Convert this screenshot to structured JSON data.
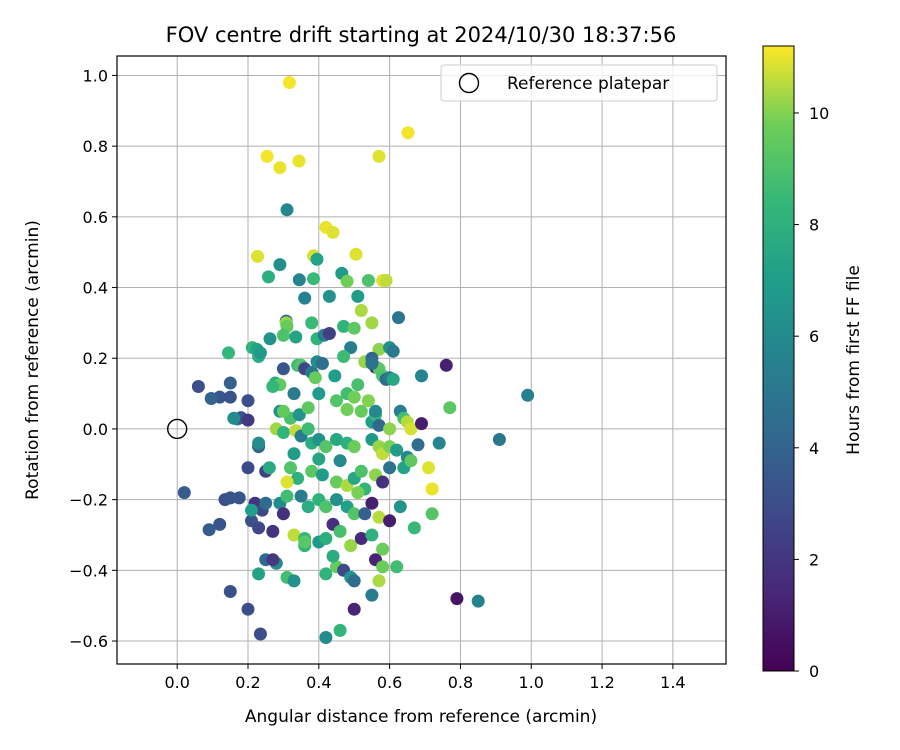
{
  "chart_data": {
    "type": "scatter",
    "title": "FOV centre drift starting at 2024/10/30 18:37:56",
    "xlabel": "Angular distance from reference (arcmin)",
    "ylabel": "Rotation from reference (arcmin)",
    "xlim": [
      -0.17,
      1.55
    ],
    "ylim": [
      -0.665,
      1.055
    ],
    "xticks": [
      0.0,
      0.2,
      0.4,
      0.6,
      0.8,
      1.0,
      1.2,
      1.4
    ],
    "xtick_labels": [
      "0.0",
      "0.2",
      "0.4",
      "0.6",
      "0.8",
      "1.0",
      "1.2",
      "1.4"
    ],
    "yticks": [
      -0.6,
      -0.4,
      -0.2,
      0.0,
      0.2,
      0.4,
      0.6,
      0.8,
      1.0
    ],
    "ytick_labels": [
      "−0.6",
      "−0.4",
      "−0.2",
      "0.0",
      "0.2",
      "0.4",
      "0.6",
      "0.8",
      "1.0"
    ],
    "grid": true,
    "legend": {
      "placement": "top-right",
      "label": "Reference platepar"
    },
    "reference": {
      "x": 0.0,
      "y": 0.0
    },
    "colorbar": {
      "label": "Hours from first FF file",
      "colormap": "viridis",
      "range": [
        0,
        11.2
      ],
      "ticks": [
        0,
        2,
        4,
        6,
        8,
        10
      ],
      "tick_labels": [
        "0",
        "2",
        "4",
        "6",
        "8",
        "10"
      ]
    },
    "series": [
      {
        "columns": [
          "x",
          "y",
          "hours"
        ],
        "points": [
          [
            0.317,
            0.98,
            11.1
          ],
          [
            0.652,
            0.838,
            11.1
          ],
          [
            0.254,
            0.771,
            11.1
          ],
          [
            0.344,
            0.758,
            11.0
          ],
          [
            0.57,
            0.771,
            10.9
          ],
          [
            0.29,
            0.739,
            11.0
          ],
          [
            0.31,
            0.62,
            5.9
          ],
          [
            0.42,
            0.57,
            11.0
          ],
          [
            0.44,
            0.556,
            10.9
          ],
          [
            0.227,
            0.488,
            10.9
          ],
          [
            0.505,
            0.494,
            10.9
          ],
          [
            0.385,
            0.49,
            10.8
          ],
          [
            0.395,
            0.48,
            7.2
          ],
          [
            0.29,
            0.465,
            6.2
          ],
          [
            0.258,
            0.43,
            7.9
          ],
          [
            0.345,
            0.422,
            5.7
          ],
          [
            0.385,
            0.425,
            8.5
          ],
          [
            0.465,
            0.44,
            6.8
          ],
          [
            0.48,
            0.418,
            9.8
          ],
          [
            0.54,
            0.42,
            9.0
          ],
          [
            0.58,
            0.42,
            10.9
          ],
          [
            0.59,
            0.42,
            10.6
          ],
          [
            0.36,
            0.37,
            5.6
          ],
          [
            0.43,
            0.375,
            6.4
          ],
          [
            0.51,
            0.375,
            6.9
          ],
          [
            0.52,
            0.335,
            10.4
          ],
          [
            0.625,
            0.315,
            4.9
          ],
          [
            0.308,
            0.305,
            4.0
          ],
          [
            0.308,
            0.3,
            10.2
          ],
          [
            0.31,
            0.29,
            9.6
          ],
          [
            0.47,
            0.29,
            8.2
          ],
          [
            0.5,
            0.285,
            9.4
          ],
          [
            0.55,
            0.3,
            10.3
          ],
          [
            0.262,
            0.255,
            6.4
          ],
          [
            0.3,
            0.265,
            9.0
          ],
          [
            0.335,
            0.26,
            7.3
          ],
          [
            0.395,
            0.255,
            8.1
          ],
          [
            0.415,
            0.265,
            5.2
          ],
          [
            0.49,
            0.23,
            5.4
          ],
          [
            0.57,
            0.225,
            10.1
          ],
          [
            0.6,
            0.23,
            6.3
          ],
          [
            0.145,
            0.215,
            8.4
          ],
          [
            0.212,
            0.23,
            8.3
          ],
          [
            0.23,
            0.205,
            7.8
          ],
          [
            0.225,
            0.225,
            7.3
          ],
          [
            0.235,
            0.215,
            6.8
          ],
          [
            0.277,
            0.13,
            7.7
          ],
          [
            0.29,
            0.125,
            9.5
          ],
          [
            0.3,
            0.17,
            3.4
          ],
          [
            0.34,
            0.18,
            8.6
          ],
          [
            0.35,
            0.18,
            9.1
          ],
          [
            0.36,
            0.17,
            2.6
          ],
          [
            0.38,
            0.16,
            5.0
          ],
          [
            0.395,
            0.19,
            6.1
          ],
          [
            0.41,
            0.185,
            4.6
          ],
          [
            0.445,
            0.15,
            7.0
          ],
          [
            0.47,
            0.205,
            8.6
          ],
          [
            0.53,
            0.19,
            10.2
          ],
          [
            0.55,
            0.2,
            4.1
          ],
          [
            0.56,
            0.175,
            1.2
          ],
          [
            0.57,
            0.17,
            9.3
          ],
          [
            0.58,
            0.15,
            9.0
          ],
          [
            0.59,
            0.14,
            4.3
          ],
          [
            0.6,
            0.145,
            5.3
          ],
          [
            0.61,
            0.14,
            7.5
          ],
          [
            0.69,
            0.15,
            5.7
          ],
          [
            0.76,
            0.18,
            1.1
          ],
          [
            0.06,
            0.12,
            3.1
          ],
          [
            0.15,
            0.13,
            3.8
          ],
          [
            0.12,
            0.09,
            3.4
          ],
          [
            0.15,
            0.09,
            3.2
          ],
          [
            0.2,
            0.08,
            3.1
          ],
          [
            0.096,
            0.086,
            4.0
          ],
          [
            0.17,
            0.028,
            5.7
          ],
          [
            0.18,
            0.032,
            3.3
          ],
          [
            0.2,
            0.025,
            2.1
          ],
          [
            0.16,
            0.03,
            6.1
          ],
          [
            0.29,
            0.05,
            6.3
          ],
          [
            0.32,
            0.03,
            8.9
          ],
          [
            0.345,
            0.04,
            6.5
          ],
          [
            0.37,
            0.06,
            9.4
          ],
          [
            0.4,
            0.1,
            6.8
          ],
          [
            0.45,
            0.08,
            9.1
          ],
          [
            0.48,
            0.1,
            8.7
          ],
          [
            0.5,
            0.09,
            9.8
          ],
          [
            0.52,
            0.05,
            9.6
          ],
          [
            0.54,
            0.08,
            10.0
          ],
          [
            0.55,
            0.02,
            7.1
          ],
          [
            0.56,
            0.04,
            8.4
          ],
          [
            0.57,
            0.01,
            4.2
          ],
          [
            0.6,
            0.0,
            10.1
          ],
          [
            0.63,
            0.05,
            5.4
          ],
          [
            0.64,
            0.03,
            8.8
          ],
          [
            0.65,
            0.02,
            10.5
          ],
          [
            0.66,
            0.0,
            10.8
          ],
          [
            0.69,
            0.015,
            1.0
          ],
          [
            0.77,
            0.06,
            9.3
          ],
          [
            0.99,
            0.095,
            5.5
          ],
          [
            0.23,
            -0.05,
            4.0
          ],
          [
            0.23,
            -0.04,
            6.2
          ],
          [
            0.28,
            0.0,
            10.3
          ],
          [
            0.3,
            -0.01,
            8.3
          ],
          [
            0.335,
            -0.005,
            10.6
          ],
          [
            0.35,
            -0.02,
            5.2
          ],
          [
            0.38,
            -0.04,
            7.8
          ],
          [
            0.4,
            -0.03,
            6.4
          ],
          [
            0.42,
            -0.05,
            9.2
          ],
          [
            0.45,
            -0.03,
            7.6
          ],
          [
            0.48,
            -0.04,
            8.0
          ],
          [
            0.5,
            -0.05,
            9.7
          ],
          [
            0.55,
            -0.03,
            6.7
          ],
          [
            0.57,
            -0.05,
            10.2
          ],
          [
            0.58,
            -0.07,
            10.6
          ],
          [
            0.6,
            -0.05,
            9.9
          ],
          [
            0.62,
            -0.06,
            6.9
          ],
          [
            0.65,
            -0.08,
            5.8
          ],
          [
            0.68,
            -0.045,
            4.5
          ],
          [
            0.74,
            -0.04,
            5.7
          ],
          [
            0.91,
            -0.03,
            5.0
          ],
          [
            0.2,
            -0.11,
            2.8
          ],
          [
            0.25,
            -0.12,
            2.4
          ],
          [
            0.26,
            -0.11,
            7.6
          ],
          [
            0.32,
            -0.11,
            9.1
          ],
          [
            0.34,
            -0.14,
            8.0
          ],
          [
            0.38,
            -0.12,
            9.3
          ],
          [
            0.41,
            -0.13,
            6.9
          ],
          [
            0.45,
            -0.15,
            9.6
          ],
          [
            0.48,
            -0.16,
            10.4
          ],
          [
            0.5,
            -0.14,
            7.5
          ],
          [
            0.53,
            -0.17,
            8.3
          ],
          [
            0.56,
            -0.13,
            10.1
          ],
          [
            0.58,
            -0.15,
            1.8
          ],
          [
            0.6,
            -0.11,
            4.8
          ],
          [
            0.64,
            -0.11,
            7.2
          ],
          [
            0.66,
            -0.09,
            9.4
          ],
          [
            0.71,
            -0.11,
            10.9
          ],
          [
            0.02,
            -0.18,
            3.6
          ],
          [
            0.135,
            -0.2,
            3.1
          ],
          [
            0.15,
            -0.195,
            3.2
          ],
          [
            0.175,
            -0.195,
            3.4
          ],
          [
            0.22,
            -0.21,
            1.9
          ],
          [
            0.24,
            -0.23,
            2.7
          ],
          [
            0.25,
            -0.21,
            4.4
          ],
          [
            0.29,
            -0.21,
            6.1
          ],
          [
            0.31,
            -0.19,
            8.7
          ],
          [
            0.35,
            -0.19,
            5.3
          ],
          [
            0.37,
            -0.22,
            7.8
          ],
          [
            0.4,
            -0.2,
            8.1
          ],
          [
            0.42,
            -0.22,
            9.0
          ],
          [
            0.45,
            -0.2,
            6.3
          ],
          [
            0.48,
            -0.22,
            7.1
          ],
          [
            0.5,
            -0.24,
            9.2
          ],
          [
            0.53,
            -0.24,
            3.8
          ],
          [
            0.55,
            -0.21,
            1.1
          ],
          [
            0.57,
            -0.25,
            10.5
          ],
          [
            0.6,
            -0.26,
            1.0
          ],
          [
            0.63,
            -0.22,
            6.5
          ],
          [
            0.67,
            -0.28,
            8.5
          ],
          [
            0.72,
            -0.24,
            9.2
          ],
          [
            0.72,
            -0.17,
            11.0
          ],
          [
            0.09,
            -0.285,
            3.6
          ],
          [
            0.12,
            -0.27,
            3.3
          ],
          [
            0.21,
            -0.26,
            3.2
          ],
          [
            0.23,
            -0.28,
            2.7
          ],
          [
            0.27,
            -0.29,
            1.9
          ],
          [
            0.3,
            -0.24,
            1.7
          ],
          [
            0.31,
            -0.15,
            10.9
          ],
          [
            0.33,
            -0.3,
            10.6
          ],
          [
            0.36,
            -0.31,
            8.4
          ],
          [
            0.4,
            -0.32,
            6.7
          ],
          [
            0.42,
            -0.31,
            7.9
          ],
          [
            0.44,
            -0.27,
            1.7
          ],
          [
            0.46,
            -0.29,
            8.9
          ],
          [
            0.49,
            -0.33,
            10.2
          ],
          [
            0.52,
            -0.31,
            1.5
          ],
          [
            0.55,
            -0.3,
            8.0
          ],
          [
            0.56,
            -0.37,
            1.3
          ],
          [
            0.58,
            -0.34,
            9.7
          ],
          [
            0.36,
            -0.33,
            8.1
          ],
          [
            0.25,
            -0.37,
            4.3
          ],
          [
            0.28,
            -0.38,
            6.0
          ],
          [
            0.31,
            -0.42,
            8.8
          ],
          [
            0.33,
            -0.43,
            6.4
          ],
          [
            0.36,
            -0.32,
            9.3
          ],
          [
            0.42,
            -0.41,
            8.2
          ],
          [
            0.45,
            -0.39,
            9.6
          ],
          [
            0.47,
            -0.4,
            2.8
          ],
          [
            0.49,
            -0.42,
            6.6
          ],
          [
            0.5,
            -0.43,
            4.5
          ],
          [
            0.55,
            -0.47,
            5.3
          ],
          [
            0.57,
            -0.43,
            10.4
          ],
          [
            0.58,
            -0.39,
            9.7
          ],
          [
            0.62,
            -0.39,
            8.7
          ],
          [
            0.15,
            -0.46,
            3.2
          ],
          [
            0.2,
            -0.51,
            3.0
          ],
          [
            0.23,
            -0.41,
            7.3
          ],
          [
            0.46,
            -0.57,
            8.3
          ],
          [
            0.42,
            -0.59,
            6.1
          ],
          [
            0.5,
            -0.51,
            1.3
          ],
          [
            0.235,
            -0.58,
            3.0
          ],
          [
            0.79,
            -0.48,
            0.7
          ],
          [
            0.85,
            -0.487,
            5.6
          ],
          [
            0.27,
            0.12,
            8.4
          ],
          [
            0.43,
            0.27,
            2.4
          ],
          [
            0.55,
            0.185,
            4.8
          ],
          [
            0.56,
            0.05,
            5.9
          ],
          [
            0.52,
            -0.12,
            9.0
          ],
          [
            0.4,
            -0.085,
            7.4
          ],
          [
            0.33,
            -0.07,
            6.9
          ],
          [
            0.44,
            -0.36,
            7.7
          ],
          [
            0.3,
            0.05,
            9.5
          ],
          [
            0.37,
            0.0,
            8.6
          ],
          [
            0.27,
            -0.37,
            2.1
          ],
          [
            0.51,
            0.125,
            8.9
          ],
          [
            0.61,
            0.22,
            5.1
          ],
          [
            0.21,
            -0.23,
            7.0
          ],
          [
            0.46,
            -0.09,
            6.0
          ],
          [
            0.33,
            0.1,
            5.3
          ],
          [
            0.51,
            -0.18,
            9.9
          ],
          [
            0.48,
            0.055,
            9.8
          ],
          [
            0.38,
            0.3,
            8.5
          ],
          [
            0.39,
            0.145,
            9.6
          ]
        ]
      }
    ]
  }
}
